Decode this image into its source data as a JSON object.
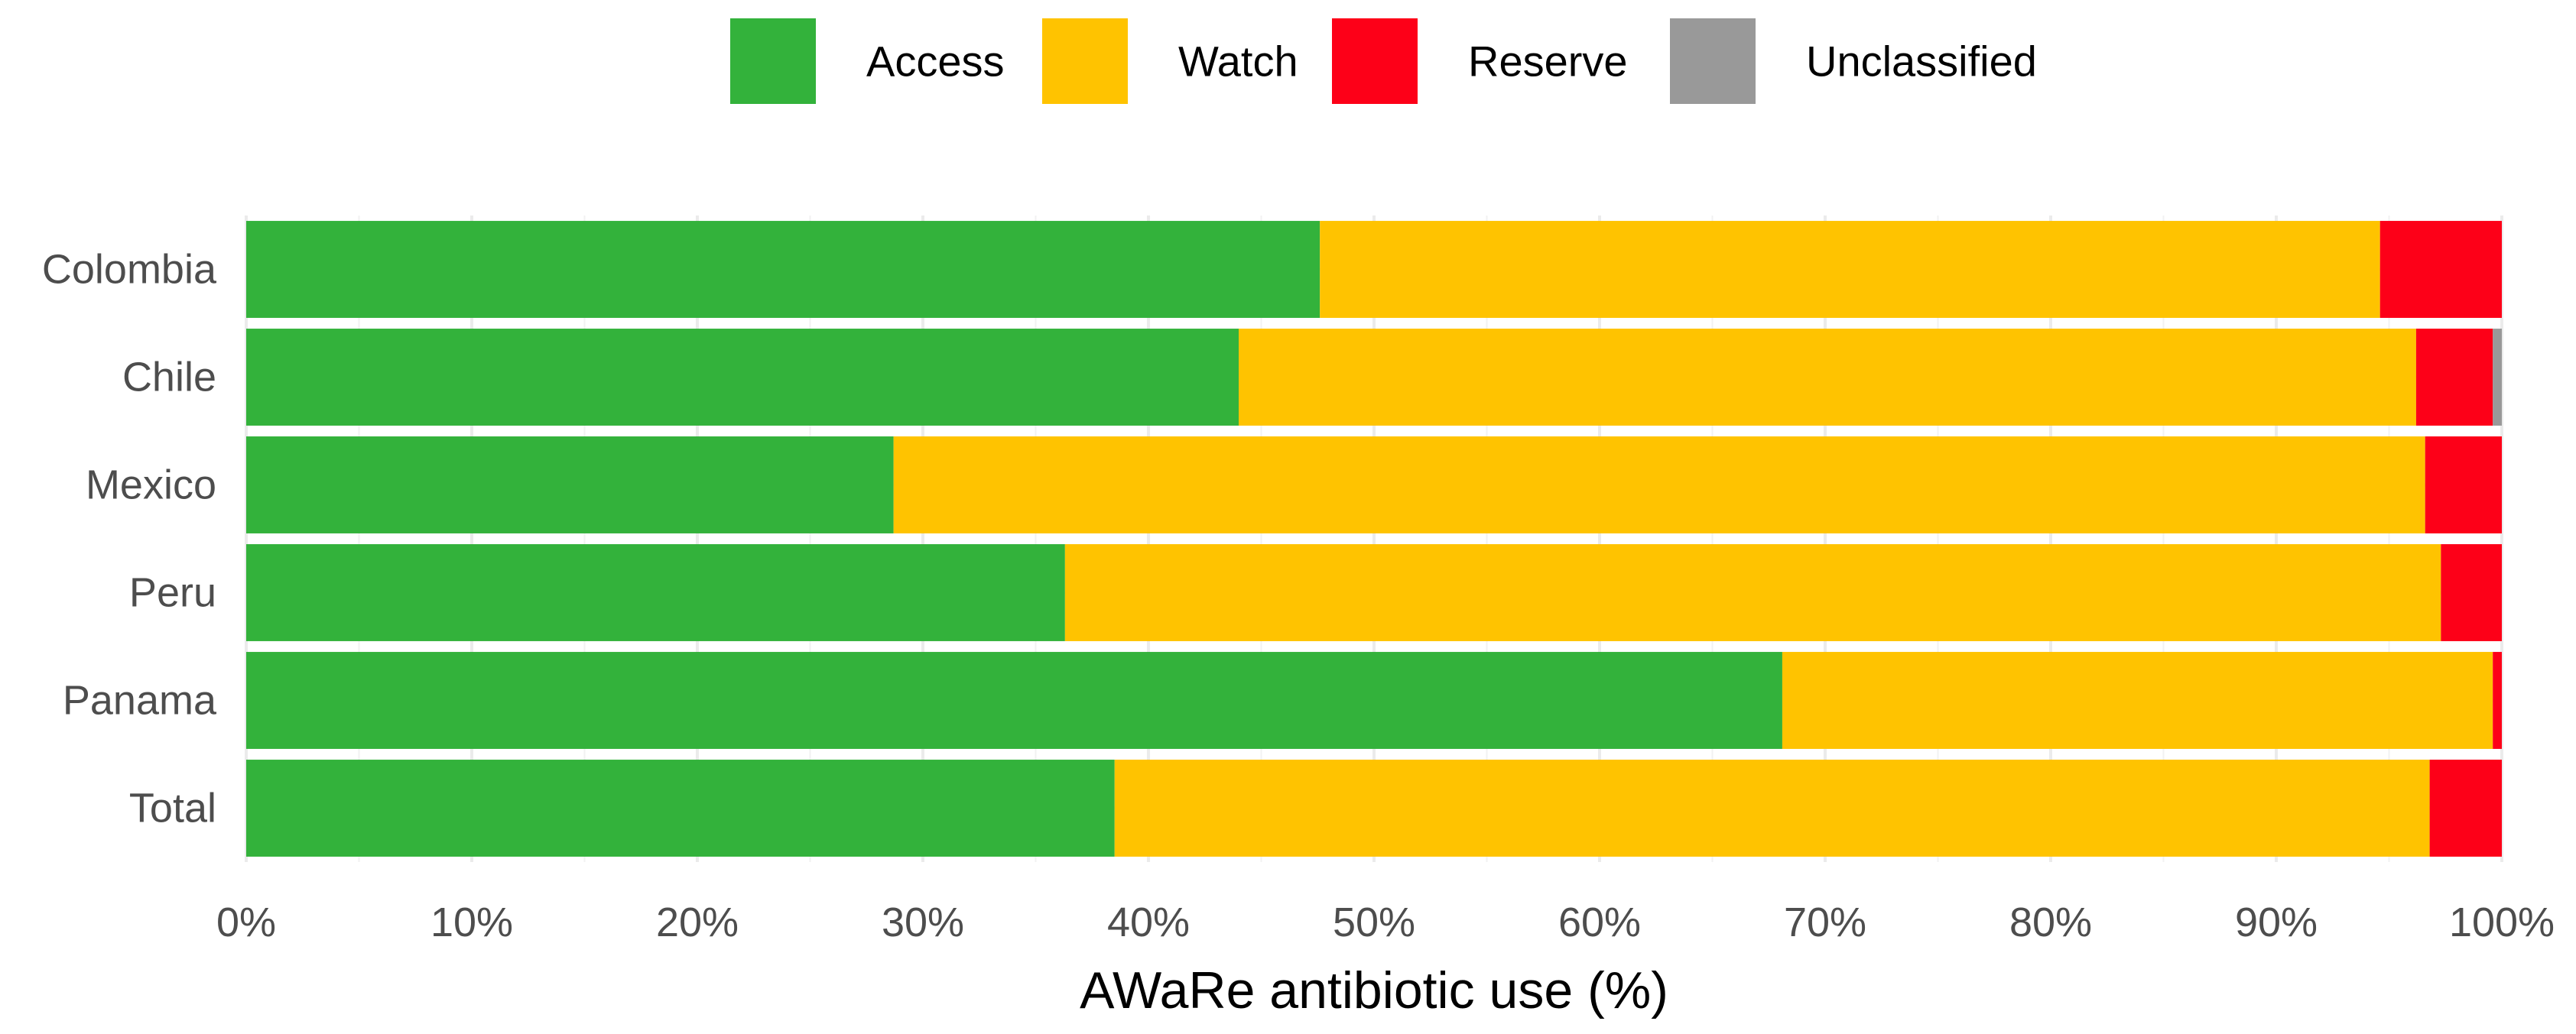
{
  "chart_data": {
    "type": "bar",
    "orientation": "horizontal",
    "stacked": true,
    "categories": [
      "Colombia",
      "Chile",
      "Mexico",
      "Peru",
      "Panama",
      "Total"
    ],
    "series": [
      {
        "name": "Access",
        "color": "#33b23b",
        "values": [
          47.6,
          44.0,
          28.7,
          36.3,
          68.1,
          38.5
        ]
      },
      {
        "name": "Watch",
        "color": "#ffc300",
        "values": [
          47.0,
          52.2,
          67.9,
          61.0,
          31.5,
          58.3
        ]
      },
      {
        "name": "Reserve",
        "color": "#fd0018",
        "values": [
          5.4,
          3.4,
          3.4,
          2.7,
          0.4,
          3.2
        ]
      },
      {
        "name": "Unclassified",
        "color": "#999999",
        "values": [
          0.0,
          0.4,
          0.0,
          0.0,
          0.0,
          0.0
        ]
      }
    ],
    "xlabel": "AWaRe antibiotic use (%)",
    "ylabel": "",
    "xlim": [
      0,
      100
    ],
    "x_ticks": [
      "0%",
      "10%",
      "20%",
      "30%",
      "40%",
      "50%",
      "60%",
      "70%",
      "80%",
      "90%",
      "100%"
    ],
    "grid": true,
    "legend_position": "top"
  }
}
